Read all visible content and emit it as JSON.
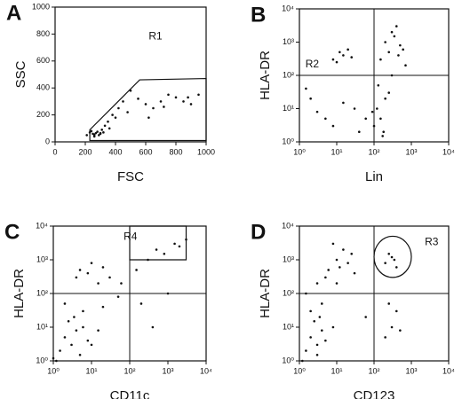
{
  "chart_data": [
    {
      "type": "scatter",
      "panel": "A",
      "xlabel": "FSC",
      "ylabel": "SSC",
      "log": false,
      "xlim": [
        0,
        1000
      ],
      "ylim": [
        0,
        1000
      ],
      "xticks": [
        0,
        200,
        400,
        600,
        800,
        1000
      ],
      "yticks": [
        0,
        200,
        400,
        600,
        800,
        1000
      ],
      "gate": {
        "label": "R1",
        "x": [
          230,
          230,
          560,
          1000,
          1000
        ],
        "y": [
          10,
          90,
          460,
          470,
          10
        ]
      },
      "x": [
        210,
        230,
        250,
        260,
        270,
        280,
        300,
        320,
        240,
        260,
        290,
        310,
        350,
        380,
        420,
        450,
        500,
        550,
        600,
        650,
        700,
        750,
        800,
        850,
        900,
        950,
        330,
        400,
        480,
        620,
        720,
        880,
        260,
        300,
        360
      ],
      "y": [
        50,
        70,
        60,
        55,
        65,
        75,
        60,
        70,
        80,
        45,
        50,
        90,
        150,
        200,
        250,
        300,
        380,
        320,
        280,
        250,
        300,
        350,
        330,
        300,
        280,
        350,
        120,
        180,
        220,
        180,
        260,
        330,
        40,
        65,
        100
      ]
    },
    {
      "type": "scatter",
      "panel": "B",
      "xlabel": "Lin",
      "ylabel": "HLA-DR",
      "log": true,
      "xlim": [
        1,
        10000
      ],
      "ylim": [
        1,
        10000
      ],
      "xticks": [
        {
          "value": 1,
          "label": "10⁰"
        },
        {
          "value": 10,
          "label": "10¹"
        },
        {
          "value": 100,
          "label": "10²"
        },
        {
          "value": 1000,
          "label": "10³"
        },
        {
          "value": 10000,
          "label": "10⁴"
        }
      ],
      "yticks": [
        {
          "value": 1,
          "label": "10⁰"
        },
        {
          "value": 10,
          "label": "10¹"
        },
        {
          "value": 100,
          "label": "10²"
        },
        {
          "value": 1000,
          "label": "10³"
        },
        {
          "value": 10000,
          "label": "10⁴"
        }
      ],
      "quadrant": [
        100,
        100
      ],
      "gate": {
        "label": "R2"
      },
      "x": [
        200,
        300,
        400,
        250,
        500,
        350,
        450,
        600,
        150,
        120,
        150,
        200,
        100,
        180,
        250,
        130,
        90,
        170,
        8,
        12,
        15,
        20,
        10,
        25,
        2,
        3,
        5,
        8,
        15,
        30,
        1.5,
        40,
        60,
        300,
        700
      ],
      "y": [
        1000,
        2000,
        3000,
        500,
        800,
        1500,
        400,
        600,
        300,
        10,
        5,
        20,
        3,
        2,
        30,
        50,
        8,
        1.5,
        300,
        500,
        400,
        600,
        250,
        350,
        20,
        8,
        5,
        3,
        15,
        10,
        40,
        2,
        5,
        100,
        200
      ]
    },
    {
      "type": "scatter",
      "panel": "C",
      "xlabel": "CD11c",
      "ylabel": "HLA-DR",
      "log": true,
      "xlim": [
        1,
        10000
      ],
      "ylim": [
        1,
        10000
      ],
      "xticks": [
        {
          "value": 1,
          "label": "10⁰"
        },
        {
          "value": 10,
          "label": "10¹"
        },
        {
          "value": 100,
          "label": "10²"
        },
        {
          "value": 1000,
          "label": "10³"
        },
        {
          "value": 10000,
          "label": "10⁴"
        }
      ],
      "yticks": [
        {
          "value": 1,
          "label": "10⁰"
        },
        {
          "value": 10,
          "label": "10¹"
        },
        {
          "value": 100,
          "label": "10²"
        },
        {
          "value": 1000,
          "label": "10³"
        },
        {
          "value": 10000,
          "label": "10⁴"
        }
      ],
      "quadrant": [
        100,
        100
      ],
      "gate": {
        "label": "R4",
        "x": [
          100,
          3000,
          3000,
          100
        ],
        "y": [
          1000,
          1000,
          10000,
          10000
        ]
      },
      "x": [
        1.5,
        2,
        3,
        4,
        5,
        6,
        8,
        2.5,
        3.5,
        1.2,
        10,
        15,
        4,
        5,
        8,
        10,
        15,
        20,
        30,
        6,
        150,
        300,
        500,
        800,
        1500,
        2000,
        3000,
        200,
        1000,
        400,
        50,
        60,
        20,
        2,
        1
      ],
      "y": [
        2,
        5,
        3,
        8,
        1.5,
        10,
        4,
        15,
        20,
        1,
        3,
        8,
        300,
        500,
        400,
        800,
        200,
        600,
        300,
        30,
        500,
        1000,
        2000,
        1500,
        3000,
        2500,
        4000,
        50,
        100,
        10,
        80,
        200,
        40,
        50,
        1.2
      ]
    },
    {
      "type": "scatter",
      "panel": "D",
      "xlabel": "CD123",
      "ylabel": "HLA-DR",
      "log": true,
      "xlim": [
        1,
        10000
      ],
      "ylim": [
        1,
        10000
      ],
      "xticks": [
        {
          "value": 1,
          "label": "10⁰"
        },
        {
          "value": 10,
          "label": "10¹"
        },
        {
          "value": 100,
          "label": "10²"
        },
        {
          "value": 1000,
          "label": "10³"
        },
        {
          "value": 10000,
          "label": "10⁴"
        }
      ],
      "yticks": [
        {
          "value": 1,
          "label": "10⁰"
        },
        {
          "value": 10,
          "label": "10¹"
        },
        {
          "value": 100,
          "label": "10²"
        },
        {
          "value": 1000,
          "label": "10³"
        },
        {
          "value": 10000,
          "label": "10⁴"
        }
      ],
      "quadrant": [
        100,
        100
      ],
      "gate": {
        "label": "R3",
        "shape": "ellipse",
        "x": [
          100,
          1000
        ],
        "y": [
          300,
          5000
        ]
      },
      "x": [
        1.5,
        2,
        3,
        4,
        2.5,
        1.2,
        3.5,
        5,
        2,
        3,
        6,
        10,
        15,
        20,
        8,
        12,
        25,
        30,
        5,
        10,
        200,
        300,
        400,
        250,
        350,
        200,
        300,
        400,
        250,
        500,
        1.5,
        4,
        60,
        3,
        8
      ],
      "y": [
        2,
        5,
        3,
        8,
        15,
        1,
        20,
        4,
        30,
        1.5,
        500,
        1000,
        2000,
        800,
        3000,
        600,
        1500,
        400,
        300,
        200,
        800,
        1200,
        600,
        1500,
        1000,
        5,
        10,
        30,
        50,
        8,
        100,
        50,
        20,
        200,
        10
      ]
    }
  ]
}
